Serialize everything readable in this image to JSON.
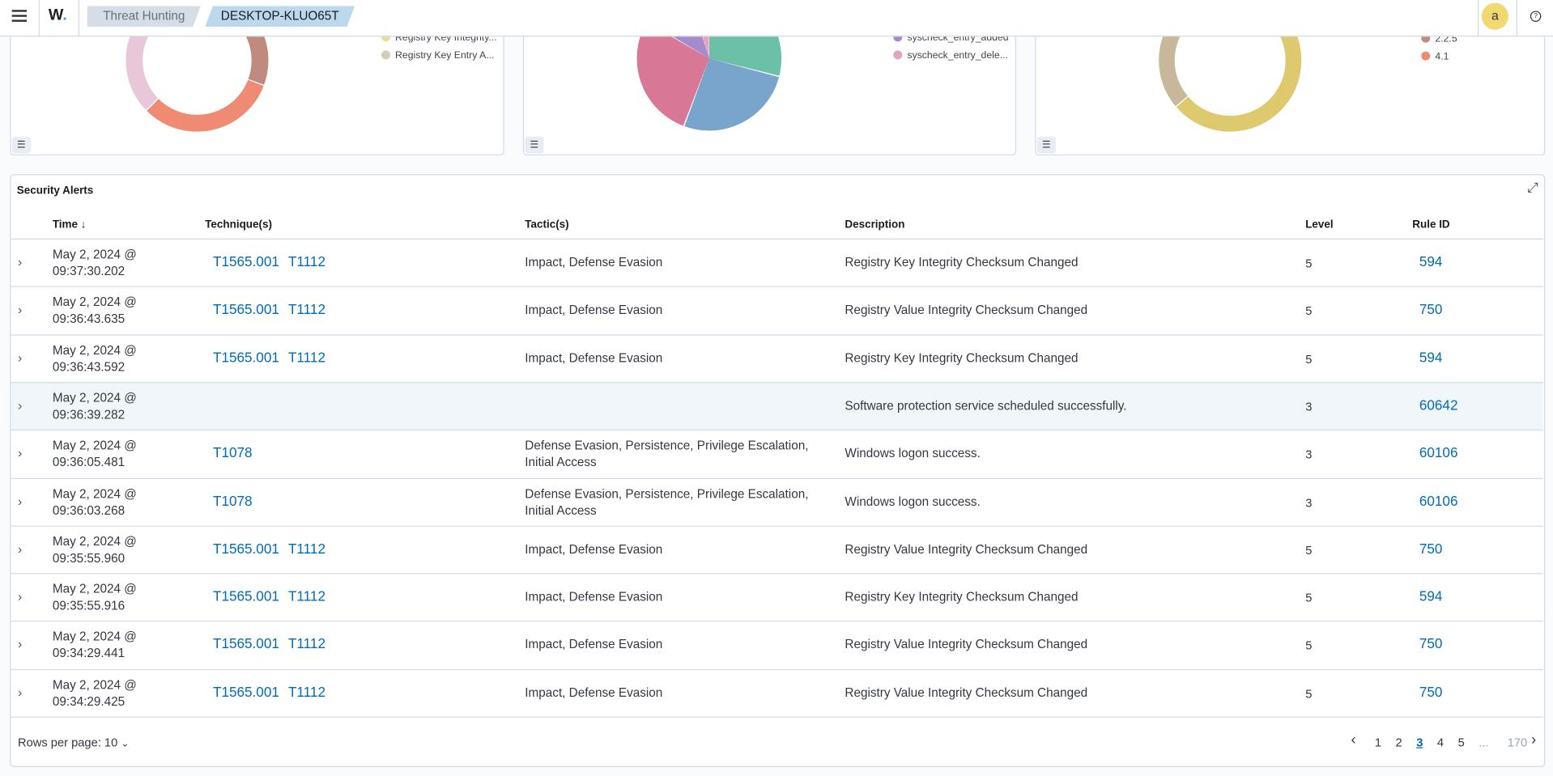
{
  "header": {
    "breadcrumbs": [
      "Threat Hunting",
      "DESKTOP-KLUO65T"
    ],
    "avatar": "a"
  },
  "panels": [
    {
      "legend": [
        {
          "label": "Registry Key Integrity...",
          "color": "#eedc9a"
        },
        {
          "label": "Registry Key Entry A...",
          "color": "#d6cdb7"
        }
      ]
    },
    {
      "legend": [
        {
          "label": "syscheck_entry_added",
          "color": "#a58bcd"
        },
        {
          "label": "syscheck_entry_dele...",
          "color": "#dea5c3"
        }
      ]
    },
    {
      "legend": [
        {
          "label": "2.2.5",
          "color": "#c08a7e"
        },
        {
          "label": "4.1",
          "color": "#ee8b72"
        }
      ]
    }
  ],
  "table": {
    "title": "Security Alerts",
    "columns": [
      "Time",
      "Technique(s)",
      "Tactic(s)",
      "Description",
      "Level",
      "Rule ID"
    ],
    "rows": [
      [
        "May 2, 2024 @ 09:37:30.202",
        [
          "T1565.001",
          "T1112"
        ],
        "Impact, Defense Evasion",
        "Registry Key Integrity Checksum Changed",
        "5",
        "594"
      ],
      [
        "May 2, 2024 @ 09:36:43.635",
        [
          "T1565.001",
          "T1112"
        ],
        "Impact, Defense Evasion",
        "Registry Value Integrity Checksum Changed",
        "5",
        "750"
      ],
      [
        "May 2, 2024 @ 09:36:43.592",
        [
          "T1565.001",
          "T1112"
        ],
        "Impact, Defense Evasion",
        "Registry Key Integrity Checksum Changed",
        "5",
        "594"
      ],
      [
        "May 2, 2024 @ 09:36:39.282",
        [],
        "",
        "Software protection service scheduled successfully.",
        "3",
        "60642"
      ],
      [
        "May 2, 2024 @ 09:36:05.481",
        [
          "T1078"
        ],
        "Defense Evasion, Persistence, Privilege Escalation, Initial Access",
        "Windows logon success.",
        "3",
        "60106"
      ],
      [
        "May 2, 2024 @ 09:36:03.268",
        [
          "T1078"
        ],
        "Defense Evasion, Persistence, Privilege Escalation, Initial Access",
        "Windows logon success.",
        "3",
        "60106"
      ],
      [
        "May 2, 2024 @ 09:35:55.960",
        [
          "T1565.001",
          "T1112"
        ],
        "Impact, Defense Evasion",
        "Registry Value Integrity Checksum Changed",
        "5",
        "750"
      ],
      [
        "May 2, 2024 @ 09:35:55.916",
        [
          "T1565.001",
          "T1112"
        ],
        "Impact, Defense Evasion",
        "Registry Key Integrity Checksum Changed",
        "5",
        "594"
      ],
      [
        "May 2, 2024 @ 09:34:29.441",
        [
          "T1565.001",
          "T1112"
        ],
        "Impact, Defense Evasion",
        "Registry Value Integrity Checksum Changed",
        "5",
        "750"
      ],
      [
        "May 2, 2024 @ 09:34:29.425",
        [
          "T1565.001",
          "T1112"
        ],
        "Impact, Defense Evasion",
        "Registry Value Integrity Checksum Changed",
        "5",
        "750"
      ]
    ],
    "highlighted_row": 3,
    "rows_per_page": "Rows per page: 10",
    "pages": [
      "1",
      "2",
      "3",
      "4",
      "5",
      "...",
      "170"
    ],
    "current_page": 2
  }
}
